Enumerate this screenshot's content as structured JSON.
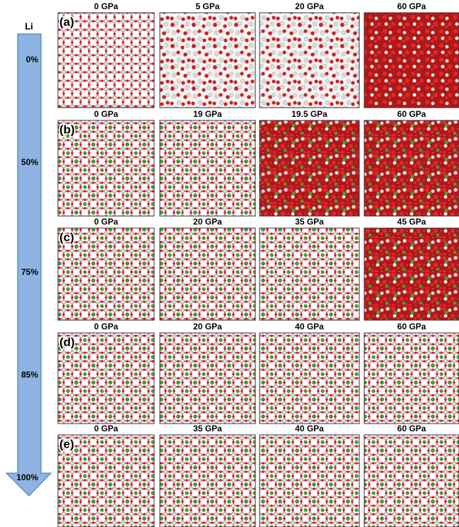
{
  "arrow": {
    "title": "Li",
    "levels": [
      "0%",
      "50%",
      "75%",
      "85%",
      "100%"
    ]
  },
  "rows": [
    {
      "label": "(a)",
      "pressures": [
        "0 GPa",
        "5 GPa",
        "20 GPa",
        "60 GPa"
      ]
    },
    {
      "label": "(b)",
      "pressures": [
        "0 GPa",
        "19 GPa",
        "19.5 GPa",
        "60 GPa"
      ]
    },
    {
      "label": "(c)",
      "pressures": [
        "0 GPa",
        "20 GPa",
        "35 GPa",
        "45 GPa"
      ]
    },
    {
      "label": "(d)",
      "pressures": [
        "0 GPa",
        "20 GPa",
        "40 GPa",
        "60 GPa"
      ]
    },
    {
      "label": "(e)",
      "pressures": [
        "0 GPa",
        "35 GPa",
        "40 GPa",
        "60 GPa"
      ]
    }
  ]
}
